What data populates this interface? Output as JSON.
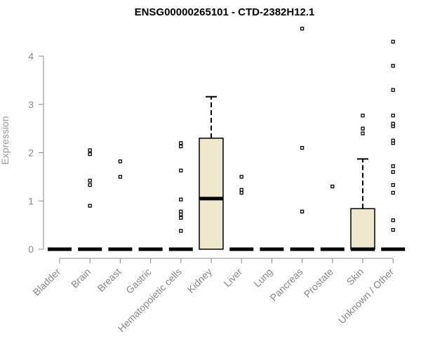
{
  "chart_data": {
    "type": "boxplot",
    "title": "ENSG00000265101 - CTD-2382H12.1",
    "xlabel": "",
    "ylabel": "Expression",
    "ylim": [
      0,
      4.6
    ],
    "y_ticks": [
      "0",
      "1",
      "2",
      "3",
      "4"
    ],
    "grid": false,
    "box_color": "#ede7cc",
    "categories": [
      "Bladder",
      "Brain",
      "Breast",
      "Gastric",
      "Hematopoietic cells",
      "Kidney",
      "Liver",
      "Lung",
      "Pancreas",
      "Prostate",
      "Skin",
      "Unknown / Other"
    ],
    "boxes": [
      {
        "q1": 0,
        "median": 0,
        "q3": 0,
        "whisker_low": 0,
        "whisker_high": 0,
        "outliers": []
      },
      {
        "q1": 0,
        "median": 0,
        "q3": 0,
        "whisker_low": 0,
        "whisker_high": 0,
        "outliers": [
          0.9,
          1.33,
          1.42,
          1.97,
          2.05
        ]
      },
      {
        "q1": 0,
        "median": 0,
        "q3": 0,
        "whisker_low": 0,
        "whisker_high": 0,
        "outliers": [
          1.5,
          1.82
        ]
      },
      {
        "q1": 0,
        "median": 0,
        "q3": 0,
        "whisker_low": 0,
        "whisker_high": 0,
        "outliers": []
      },
      {
        "q1": 0,
        "median": 0,
        "q3": 0,
        "whisker_low": 0,
        "whisker_high": 0,
        "outliers": [
          0.38,
          0.65,
          0.72,
          0.78,
          1.03,
          1.63,
          2.13,
          2.2
        ]
      },
      {
        "q1": 0,
        "median": 1.05,
        "q3": 2.3,
        "whisker_low": 0,
        "whisker_high": 3.16,
        "outliers": []
      },
      {
        "q1": 0,
        "median": 0,
        "q3": 0,
        "whisker_low": 0,
        "whisker_high": 0,
        "outliers": [
          1.17,
          1.23,
          1.5
        ]
      },
      {
        "q1": 0,
        "median": 0,
        "q3": 0,
        "whisker_low": 0,
        "whisker_high": 0,
        "outliers": []
      },
      {
        "q1": 0,
        "median": 0,
        "q3": 0,
        "whisker_low": 0,
        "whisker_high": 0,
        "outliers": [
          0.78,
          2.1,
          4.57
        ]
      },
      {
        "q1": 0,
        "median": 0,
        "q3": 0,
        "whisker_low": 0,
        "whisker_high": 0,
        "outliers": [
          1.3
        ]
      },
      {
        "q1": 0,
        "median": 0,
        "q3": 0.84,
        "whisker_low": 0,
        "whisker_high": 1.87,
        "outliers": [
          2.4,
          2.5,
          2.77
        ]
      },
      {
        "q1": 0,
        "median": 0,
        "q3": 0,
        "whisker_low": 0,
        "whisker_high": 0,
        "outliers": [
          0.4,
          0.6,
          1.17,
          1.33,
          1.6,
          1.72,
          2.2,
          2.25,
          2.55,
          2.6,
          2.77,
          3.3,
          3.8,
          4.3
        ]
      }
    ]
  }
}
